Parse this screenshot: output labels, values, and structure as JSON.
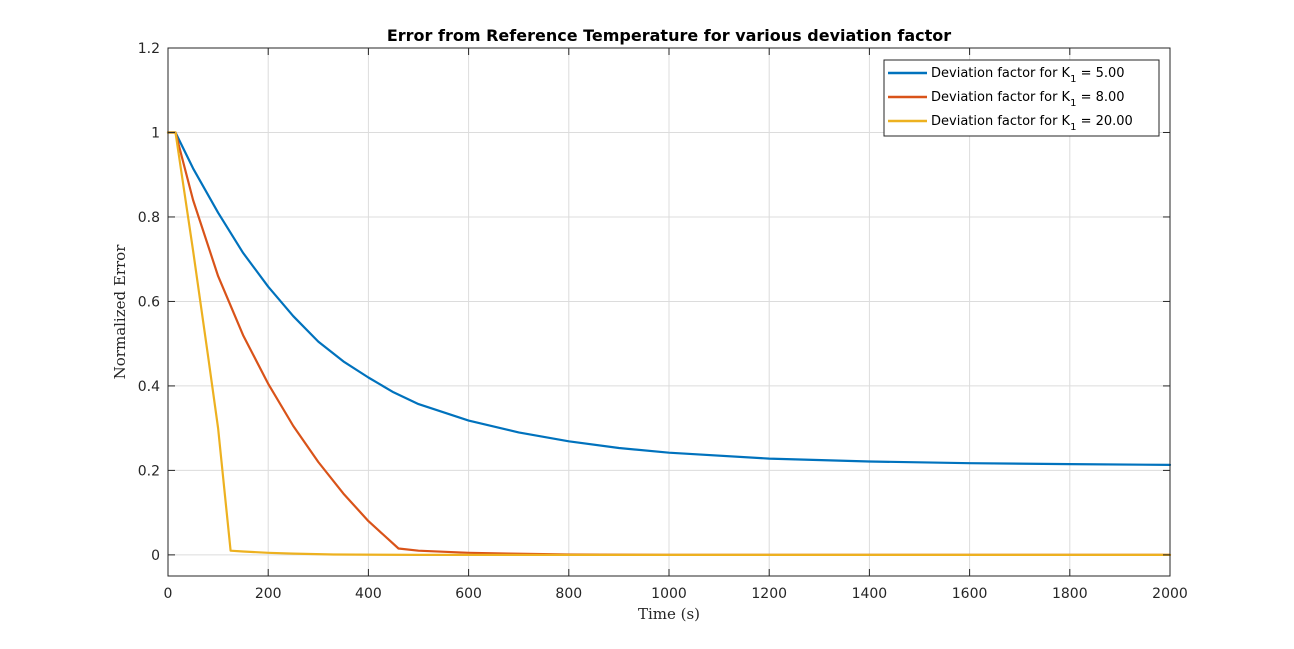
{
  "chart_data": {
    "type": "line",
    "title": "Error from Reference Temperature for various deviation factor",
    "xlabel": "Time (s)",
    "ylabel": "Normalized Error",
    "xlim": [
      0,
      2000
    ],
    "ylim": [
      -0.05,
      1.2
    ],
    "xticks": [
      0,
      200,
      400,
      600,
      800,
      1000,
      1200,
      1400,
      1600,
      1800,
      2000
    ],
    "yticks": [
      0,
      0.2,
      0.4,
      0.6,
      0.8,
      1,
      1.2
    ],
    "grid": true,
    "legend_position": "top-right",
    "series": [
      {
        "legend_prefix": "Deviation factor for K",
        "legend_sub": "1",
        "legend_suffix": " = 5.00",
        "color": "#0072BD",
        "x": [
          0,
          15,
          50,
          100,
          150,
          200,
          250,
          300,
          350,
          400,
          450,
          500,
          600,
          700,
          800,
          900,
          1000,
          1200,
          1400,
          1600,
          1800,
          2000
        ],
        "y": [
          1,
          1,
          0.915,
          0.81,
          0.715,
          0.635,
          0.565,
          0.505,
          0.458,
          0.42,
          0.385,
          0.357,
          0.318,
          0.29,
          0.269,
          0.253,
          0.242,
          0.228,
          0.221,
          0.217,
          0.215,
          0.213
        ]
      },
      {
        "legend_prefix": "Deviation factor for K",
        "legend_sub": "1",
        "legend_suffix": " = 8.00",
        "color": "#D95319",
        "x": [
          0,
          15,
          50,
          100,
          150,
          200,
          250,
          300,
          350,
          400,
          460,
          500,
          600,
          680,
          800,
          1000,
          1500,
          2000
        ],
        "y": [
          1,
          1,
          0.84,
          0.66,
          0.52,
          0.405,
          0.305,
          0.22,
          0.145,
          0.08,
          0.015,
          0.01,
          0.005,
          0.003,
          0.001,
          0,
          0,
          0
        ]
      },
      {
        "legend_prefix": "Deviation factor for K",
        "legend_sub": "1",
        "legend_suffix": " = 20.00",
        "color": "#EDB120",
        "x": [
          0,
          15,
          50,
          80,
          100,
          125,
          150,
          200,
          250,
          330,
          500,
          1000,
          1500,
          2000
        ],
        "y": [
          1,
          1,
          0.72,
          0.47,
          0.3,
          0.01,
          0.008,
          0.005,
          0.003,
          0.001,
          0,
          0,
          0,
          0
        ]
      }
    ]
  }
}
